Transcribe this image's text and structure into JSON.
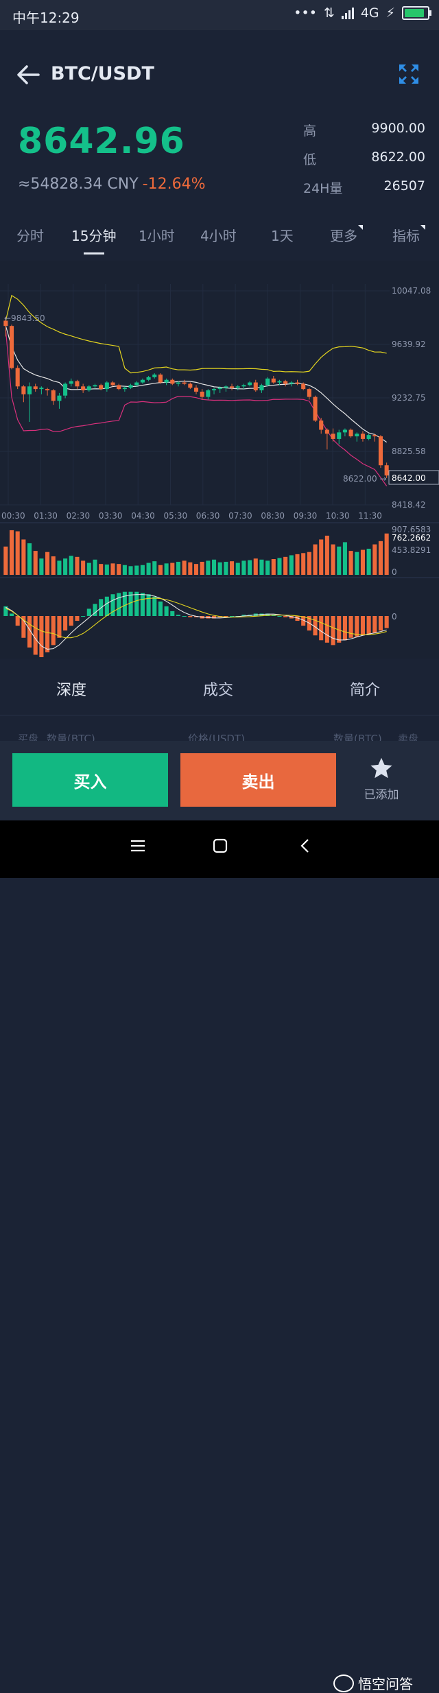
{
  "status_bar": {
    "time": "中午12:29",
    "network": "4G",
    "icons": [
      "dots-icon",
      "data-transfer-icon",
      "signal-icon",
      "charging-icon",
      "battery-icon"
    ]
  },
  "header": {
    "pair": "BTC/USDT",
    "price": "8642.96",
    "cny": "≈54828.34 CNY",
    "change": "-12.64%",
    "stats": [
      {
        "label": "高",
        "value": "9900.00"
      },
      {
        "label": "低",
        "value": "8622.00"
      },
      {
        "label": "24H量",
        "value": "26507"
      }
    ]
  },
  "tabs": [
    "分时",
    "15分钟",
    "1小时",
    "4小时",
    "1天",
    "更多",
    "指标"
  ],
  "active_tab": "15分钟",
  "chart": {
    "price_axis": [
      "10047.08",
      "9639.92",
      "9232.75",
      "8825.58",
      "8418.42"
    ],
    "time_axis": [
      "00:30",
      "01:30",
      "02:30",
      "03:30",
      "04:30",
      "05:30",
      "06:30",
      "07:30",
      "08:30",
      "09:30",
      "10:30",
      "11:30"
    ],
    "high_marker": "9843.50",
    "low_marker": "8622.00",
    "current_price": "8642.00",
    "vol_axis": [
      "907.6583",
      "762.2662",
      "453.8291",
      "0"
    ],
    "macd_axis": "0"
  },
  "chart_data": {
    "type": "candlestick",
    "candles": [
      [
        9820,
        9850,
        9700,
        9780
      ],
      [
        9780,
        9790,
        9450,
        9460
      ],
      [
        9460,
        9480,
        9300,
        9320
      ],
      [
        9320,
        9330,
        9200,
        9260
      ],
      [
        9260,
        9350,
        9050,
        9320
      ],
      [
        9320,
        9340,
        9280,
        9300
      ],
      [
        9300,
        9320,
        9260,
        9310
      ],
      [
        9300,
        9310,
        9250,
        9290
      ],
      [
        9290,
        9300,
        9180,
        9210
      ],
      [
        9210,
        9270,
        9150,
        9250
      ],
      [
        9250,
        9350,
        9230,
        9340
      ],
      [
        9340,
        9380,
        9320,
        9360
      ],
      [
        9360,
        9370,
        9300,
        9320
      ],
      [
        9320,
        9340,
        9270,
        9290
      ],
      [
        9290,
        9330,
        9280,
        9320
      ],
      [
        9320,
        9340,
        9300,
        9330
      ],
      [
        9330,
        9340,
        9290,
        9300
      ],
      [
        9300,
        9360,
        9280,
        9350
      ],
      [
        9350,
        9360,
        9320,
        9330
      ],
      [
        9330,
        9340,
        9290,
        9300
      ],
      [
        9300,
        9320,
        9280,
        9310
      ],
      [
        9310,
        9340,
        9300,
        9330
      ],
      [
        9330,
        9360,
        9320,
        9350
      ],
      [
        9350,
        9380,
        9340,
        9370
      ],
      [
        9370,
        9400,
        9360,
        9390
      ],
      [
        9390,
        9420,
        9380,
        9410
      ],
      [
        9410,
        9420,
        9340,
        9350
      ],
      [
        9350,
        9380,
        9330,
        9370
      ],
      [
        9370,
        9380,
        9330,
        9340
      ],
      [
        9340,
        9360,
        9320,
        9350
      ],
      [
        9350,
        9370,
        9330,
        9340
      ],
      [
        9340,
        9350,
        9300,
        9310
      ],
      [
        9310,
        9330,
        9260,
        9280
      ],
      [
        9280,
        9300,
        9220,
        9240
      ],
      [
        9240,
        9300,
        9220,
        9290
      ],
      [
        9290,
        9310,
        9260,
        9300
      ],
      [
        9300,
        9320,
        9270,
        9310
      ],
      [
        9310,
        9330,
        9280,
        9320
      ],
      [
        9320,
        9340,
        9290,
        9310
      ],
      [
        9310,
        9330,
        9290,
        9320
      ],
      [
        9320,
        9340,
        9300,
        9330
      ],
      [
        9330,
        9360,
        9320,
        9350
      ],
      [
        9350,
        9370,
        9280,
        9290
      ],
      [
        9290,
        9340,
        9270,
        9330
      ],
      [
        9330,
        9390,
        9320,
        9380
      ],
      [
        9380,
        9400,
        9340,
        9350
      ],
      [
        9350,
        9370,
        9330,
        9360
      ],
      [
        9360,
        9370,
        9320,
        9340
      ],
      [
        9340,
        9360,
        9320,
        9350
      ],
      [
        9350,
        9370,
        9330,
        9340
      ],
      [
        9340,
        9350,
        9290,
        9300
      ],
      [
        9300,
        9310,
        9220,
        9240
      ],
      [
        9240,
        9250,
        9050,
        9060
      ],
      [
        9060,
        9080,
        8960,
        8990
      ],
      [
        8990,
        9000,
        8840,
        8960
      ],
      [
        8960,
        9000,
        8900,
        8920
      ],
      [
        8920,
        8990,
        8880,
        8970
      ],
      [
        8970,
        9000,
        8940,
        8990
      ],
      [
        8990,
        9000,
        8930,
        8940
      ],
      [
        8940,
        8970,
        8900,
        8960
      ],
      [
        8960,
        8980,
        8900,
        8920
      ],
      [
        8920,
        8960,
        8910,
        8950
      ],
      [
        8950,
        8960,
        8900,
        8940
      ],
      [
        8940,
        8950,
        8700,
        8720
      ],
      [
        8720,
        8740,
        8622,
        8642
      ]
    ],
    "y_range": [
      8418.42,
      10047.08
    ],
    "price_ticks": [
      10047.08,
      9639.92,
      9232.75,
      8825.58,
      8418.42
    ],
    "x_ticks": [
      "00:30",
      "01:30",
      "02:30",
      "03:30",
      "04:30",
      "05:30",
      "06:30",
      "07:30",
      "08:30",
      "09:30",
      "10:30",
      "11:30"
    ],
    "volume": [
      520,
      820,
      800,
      650,
      580,
      440,
      300,
      420,
      340,
      260,
      300,
      350,
      330,
      260,
      220,
      280,
      200,
      190,
      210,
      200,
      180,
      160,
      170,
      180,
      220,
      250,
      180,
      210,
      220,
      240,
      260,
      230,
      200,
      240,
      260,
      280,
      230,
      240,
      250,
      220,
      260,
      270,
      300,
      280,
      260,
      290,
      310,
      330,
      360,
      380,
      400,
      420,
      560,
      650,
      720,
      560,
      520,
      600,
      440,
      420,
      460,
      480,
      560,
      620,
      760
    ],
    "vol_range": [
      0,
      907.6583
    ],
    "macd": [
      40,
      10,
      -40,
      -90,
      -130,
      -160,
      -170,
      -150,
      -120,
      -90,
      -60,
      -40,
      -20,
      0,
      30,
      50,
      70,
      80,
      90,
      95,
      100,
      100,
      100,
      95,
      90,
      80,
      60,
      40,
      20,
      5,
      0,
      -5,
      -5,
      -10,
      -10,
      -10,
      -5,
      -5,
      0,
      0,
      5,
      5,
      10,
      10,
      10,
      5,
      0,
      -5,
      -10,
      -20,
      -40,
      -60,
      -80,
      -100,
      -110,
      -120,
      -110,
      -100,
      -90,
      -85,
      -80,
      -75,
      -70,
      -60,
      -50
    ],
    "macd_range": [
      -200,
      150
    ]
  },
  "segments": [
    "深度",
    "成交",
    "简介"
  ],
  "order_book_labels": [
    "买盘",
    "数量(BTC)",
    "价格(USDT)",
    "数量(BTC)",
    "卖盘"
  ],
  "actions": {
    "buy": "买入",
    "sell": "卖出",
    "favorite": "已添加"
  },
  "colors": {
    "up": "#14c08a",
    "down": "#ee6a3b",
    "background": "#1b2335",
    "ma_white": "#e6e6e6",
    "ma_yellow": "#e3d41f",
    "ma_pink": "#d8307c"
  },
  "watermark": "悟空问答"
}
